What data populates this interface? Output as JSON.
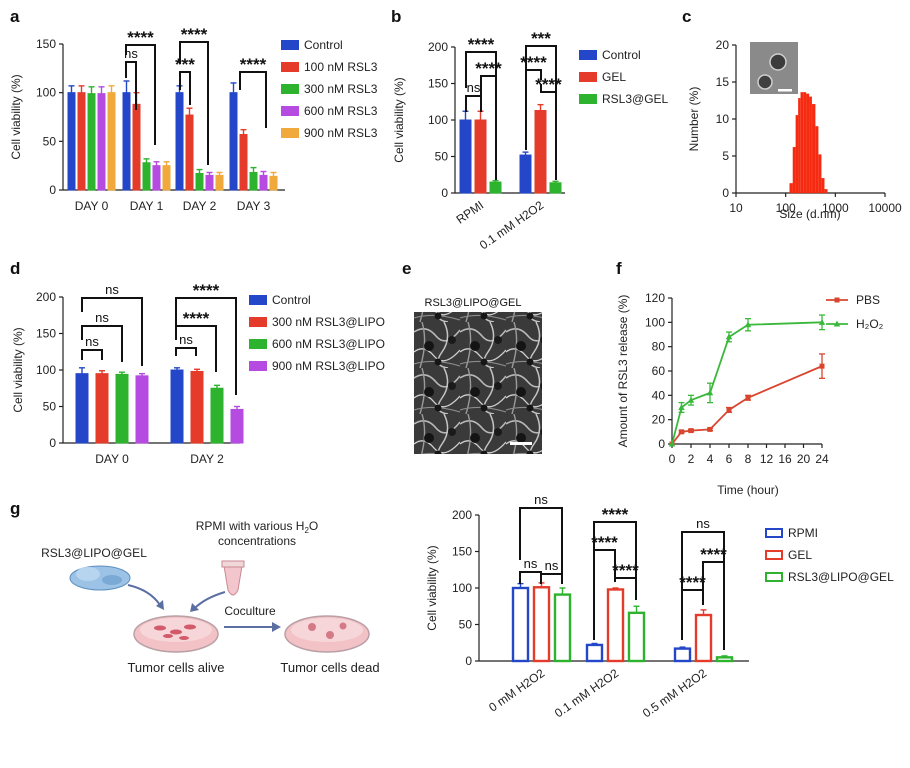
{
  "colors": {
    "blue": "#2447c9",
    "red": "#e53b2a",
    "green": "#2db32d",
    "purple": "#b54be0",
    "orange": "#f2a93b",
    "bright_red": "#f52a10",
    "line_red": "#d9452f",
    "line_green": "#3bb83b"
  },
  "panel_labels": [
    "a",
    "b",
    "c",
    "d",
    "e",
    "f",
    "g"
  ],
  "chart_data": [
    {
      "panel": "a",
      "type": "bar",
      "ylabel": "Cell viability (%)",
      "ylim": [
        0,
        150
      ],
      "yticks": [
        0,
        50,
        100,
        150
      ],
      "categories": [
        "DAY 0",
        "DAY 1",
        "DAY 2",
        "DAY 3"
      ],
      "legend_position": "right",
      "series": [
        {
          "name": "Control",
          "color": "blue",
          "values": [
            100,
            100,
            100,
            100
          ],
          "errors": [
            7,
            12,
            7,
            10
          ]
        },
        {
          "name": "100 nM RSL3",
          "color": "red",
          "values": [
            100,
            88,
            77,
            57
          ],
          "errors": [
            7,
            12,
            7,
            5
          ]
        },
        {
          "name": "300 nM RSL3",
          "color": "green",
          "values": [
            99,
            28,
            17,
            18
          ],
          "errors": [
            7,
            4,
            4,
            5
          ]
        },
        {
          "name": "600 nM RSL3",
          "color": "purple",
          "values": [
            99,
            25,
            15,
            15
          ],
          "errors": [
            7,
            4,
            3,
            4
          ]
        },
        {
          "name": "900 nM RSL3",
          "color": "orange",
          "values": [
            100,
            25,
            15,
            14
          ],
          "errors": [
            7,
            4,
            3,
            4
          ]
        }
      ],
      "annotations": [
        "ns",
        "****",
        "***",
        "****",
        "****"
      ]
    },
    {
      "panel": "b",
      "type": "bar",
      "ylabel": "Cell viability (%)",
      "ylim": [
        0,
        200
      ],
      "yticks": [
        0,
        50,
        100,
        150,
        200
      ],
      "categories": [
        "RPMI",
        "0.1 mM H2O2"
      ],
      "legend_position": "right",
      "series": [
        {
          "name": "Control",
          "color": "blue",
          "values": [
            100,
            52
          ],
          "errors": [
            12,
            4
          ]
        },
        {
          "name": "GEL",
          "color": "red",
          "values": [
            100,
            113
          ],
          "errors": [
            12,
            8
          ]
        },
        {
          "name": "RSL3@GEL",
          "color": "green",
          "values": [
            15,
            14
          ],
          "errors": [
            2,
            2
          ]
        }
      ],
      "annotations": [
        "ns",
        "****",
        "****",
        "***",
        "****",
        "****"
      ]
    },
    {
      "panel": "c",
      "type": "bar",
      "ylabel": "Number (%)",
      "xlabel": "Size (d.nm)",
      "xscale": "log",
      "xlim": [
        10,
        10000
      ],
      "ylim": [
        0,
        20
      ],
      "yticks": [
        0,
        5,
        10,
        15,
        20
      ],
      "xticks": [
        "10",
        "100",
        "1000",
        "10000"
      ],
      "x": [
        120,
        140,
        160,
        180,
        200,
        230,
        260,
        300,
        340,
        400,
        460,
        530,
        610
      ],
      "values": [
        1.3,
        6.2,
        10.5,
        12.8,
        13.6,
        13.6,
        13.4,
        13.0,
        12.0,
        9.0,
        5.2,
        2.0,
        0.5
      ]
    },
    {
      "panel": "d",
      "type": "bar",
      "ylabel": "Cell viability (%)",
      "ylim": [
        0,
        200
      ],
      "yticks": [
        0,
        50,
        100,
        150,
        200
      ],
      "categories": [
        "DAY 0",
        "DAY 2"
      ],
      "legend_position": "right",
      "series": [
        {
          "name": "Control",
          "color": "blue",
          "values": [
            95,
            100
          ],
          "errors": [
            8,
            3
          ]
        },
        {
          "name": "300 nM RSL3@LIPO",
          "color": "red",
          "values": [
            95,
            98
          ],
          "errors": [
            4,
            3
          ]
        },
        {
          "name": "600 nM RSL3@LIPO",
          "color": "green",
          "values": [
            94,
            75
          ],
          "errors": [
            3,
            4
          ]
        },
        {
          "name": "900 nM RSL3@LIPO",
          "color": "purple",
          "values": [
            92,
            46
          ],
          "errors": [
            3,
            4
          ]
        }
      ],
      "annotations": [
        "ns",
        "ns",
        "ns",
        "****",
        "****",
        "ns"
      ]
    },
    {
      "panel": "f",
      "type": "line",
      "ylabel": "Amount of RSL3 release (%)",
      "xlabel": "Time (hour)",
      "xlim": [
        0,
        24
      ],
      "ylim": [
        0,
        120
      ],
      "xticks": [
        0,
        2,
        4,
        6,
        8,
        12,
        16,
        20,
        24
      ],
      "yticks": [
        0,
        20,
        40,
        60,
        80,
        100,
        120
      ],
      "legend_position": "top-right",
      "series": [
        {
          "name": "PBS",
          "color": "line_red",
          "marker": "square",
          "x": [
            0,
            1,
            2,
            4,
            6,
            8,
            24
          ],
          "y": [
            0,
            10,
            11,
            12,
            28,
            38,
            64
          ],
          "errors": [
            0,
            1,
            1,
            1,
            2,
            2,
            10
          ]
        },
        {
          "name": "H₂O₂",
          "color": "line_green",
          "marker": "triangle",
          "x": [
            0,
            1,
            2,
            4,
            6,
            8,
            24
          ],
          "y": [
            0,
            30,
            36,
            42,
            88,
            98,
            100
          ],
          "errors": [
            0,
            4,
            4,
            8,
            4,
            5,
            6
          ]
        }
      ]
    },
    {
      "panel": "g",
      "type": "bar",
      "ylabel": "Cell viability (%)",
      "ylim": [
        0,
        200
      ],
      "yticks": [
        0,
        50,
        100,
        150,
        200
      ],
      "categories": [
        "0 mM H2O2",
        "0.1 mM H2O2",
        "0.5 mM H2O2"
      ],
      "legend_position": "right",
      "series": [
        {
          "name": "RPMI",
          "color": "blue",
          "values": [
            100,
            22,
            17
          ],
          "errors": [
            6,
            2,
            2
          ]
        },
        {
          "name": "GEL",
          "color": "red",
          "values": [
            101,
            98,
            63
          ],
          "errors": [
            6,
            2,
            7
          ]
        },
        {
          "name": "RSL3@LIPO@GEL",
          "color": "green",
          "values": [
            91,
            66,
            5
          ],
          "errors": [
            9,
            9,
            2
          ]
        }
      ],
      "annotations": [
        "ns",
        "ns",
        "ns",
        "****",
        "****",
        "****",
        "ns",
        "****",
        "****"
      ]
    }
  ],
  "panel_e": {
    "title": "RSL3@LIPO@GEL"
  },
  "schematic": {
    "top_label_line1": "RPMI with various H",
    "sub2": "2",
    "o_letter": "O",
    "top_label_line2": "concentrations",
    "gel_label": "RSL3@LIPO@GEL",
    "coculture_label": "Coculture",
    "alive_label": "Tumor cells alive",
    "dead_label": "Tumor cells dead"
  }
}
